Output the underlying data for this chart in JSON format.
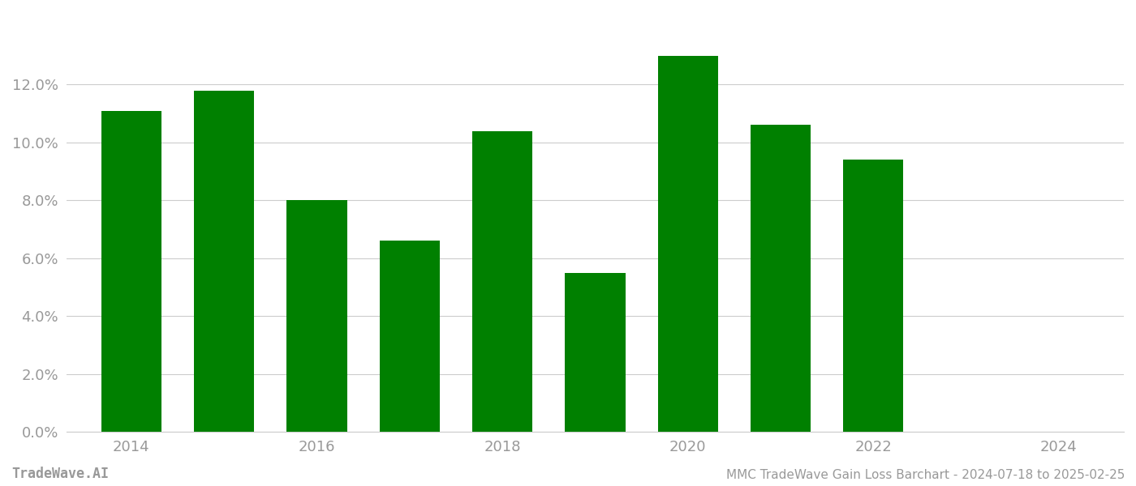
{
  "years": [
    2014,
    2015,
    2016,
    2017,
    2018,
    2019,
    2020,
    2021,
    2022,
    2023
  ],
  "values": [
    0.111,
    0.118,
    0.08,
    0.066,
    0.104,
    0.055,
    0.13,
    0.106,
    0.094,
    0.0
  ],
  "bar_color": "#008000",
  "background_color": "#ffffff",
  "grid_color": "#cccccc",
  "tick_color": "#999999",
  "ylim": [
    0,
    0.145
  ],
  "yticks": [
    0.0,
    0.02,
    0.04,
    0.06,
    0.08,
    0.1,
    0.12
  ],
  "xticks": [
    2014,
    2016,
    2018,
    2020,
    2022,
    2024
  ],
  "xlim": [
    2013.3,
    2024.7
  ],
  "footer_left": "TradeWave.AI",
  "footer_right": "MMC TradeWave Gain Loss Barchart - 2024-07-18 to 2025-02-25",
  "bar_width": 0.65
}
